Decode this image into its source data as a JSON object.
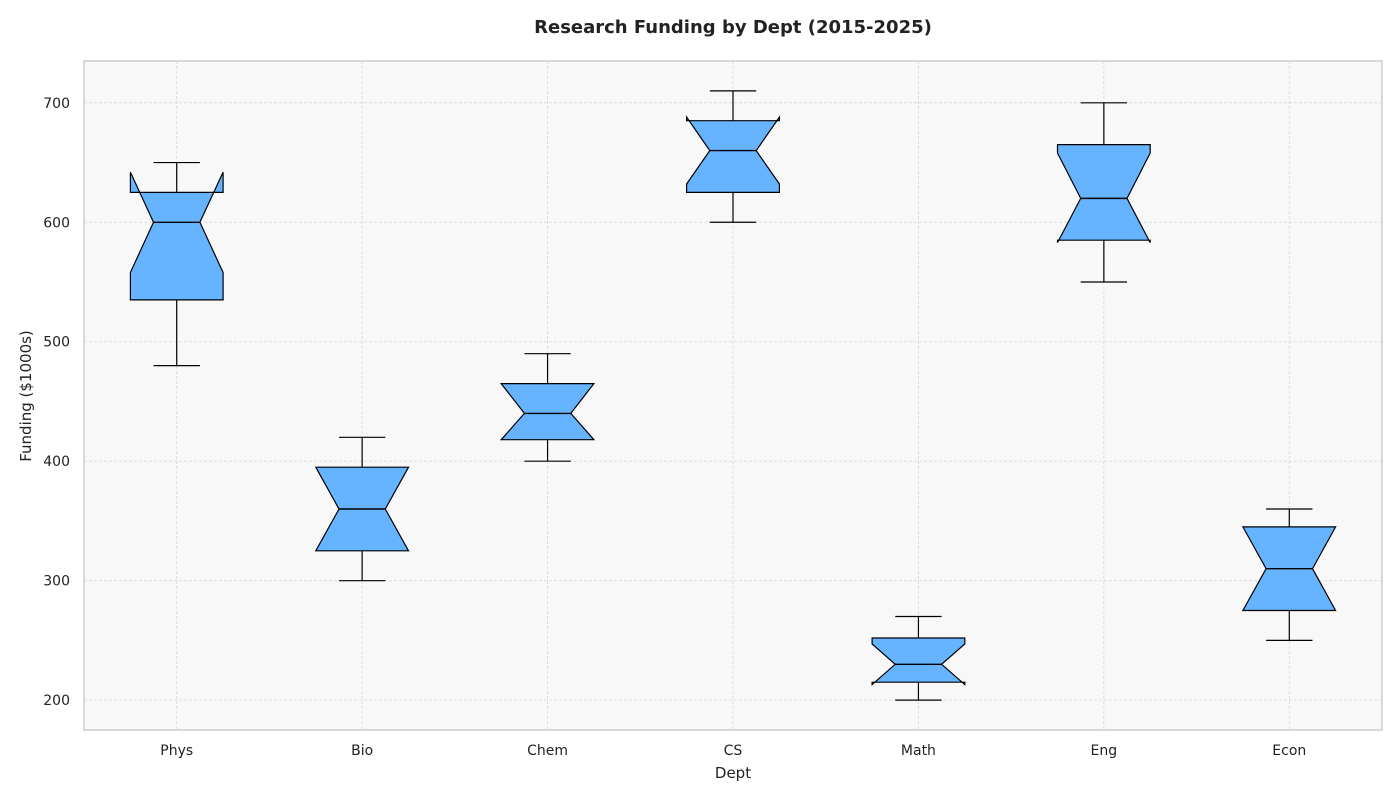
{
  "chart_data": {
    "type": "box",
    "title": "Research Funding by Dept (2015-2025)",
    "xlabel": "Dept",
    "ylabel": "Funding ($1000s)",
    "ylim": [
      175,
      735
    ],
    "yticks": [
      200,
      300,
      400,
      500,
      600,
      700
    ],
    "grid": true,
    "notched": true,
    "box_color": "#66b3ff",
    "edge_color": "#000000",
    "plot_background": "#f8f8f8",
    "categories": [
      "Phys",
      "Bio",
      "Chem",
      "CS",
      "Math",
      "Eng",
      "Econ"
    ],
    "boxes": [
      {
        "category": "Phys",
        "whisker_low": 480,
        "q1": 535,
        "median": 600,
        "q3": 625,
        "whisker_high": 650,
        "notch_low": 558,
        "notch_high": 642
      },
      {
        "category": "Bio",
        "whisker_low": 300,
        "q1": 325,
        "median": 360,
        "q3": 395,
        "whisker_high": 420,
        "notch_low": 325,
        "notch_high": 395
      },
      {
        "category": "Chem",
        "whisker_low": 400,
        "q1": 418,
        "median": 440,
        "q3": 465,
        "whisker_high": 490,
        "notch_low": 418,
        "notch_high": 465
      },
      {
        "category": "CS",
        "whisker_low": 600,
        "q1": 625,
        "median": 660,
        "q3": 685,
        "whisker_high": 710,
        "notch_low": 632,
        "notch_high": 688
      },
      {
        "category": "Math",
        "whisker_low": 200,
        "q1": 215,
        "median": 230,
        "q3": 252,
        "whisker_high": 270,
        "notch_low": 213,
        "notch_high": 247
      },
      {
        "category": "Eng",
        "whisker_low": 550,
        "q1": 585,
        "median": 620,
        "q3": 665,
        "whisker_high": 700,
        "notch_low": 583,
        "notch_high": 658
      },
      {
        "category": "Econ",
        "whisker_low": 250,
        "q1": 275,
        "median": 310,
        "q3": 345,
        "whisker_high": 360,
        "notch_low": 275,
        "notch_high": 345
      }
    ]
  }
}
